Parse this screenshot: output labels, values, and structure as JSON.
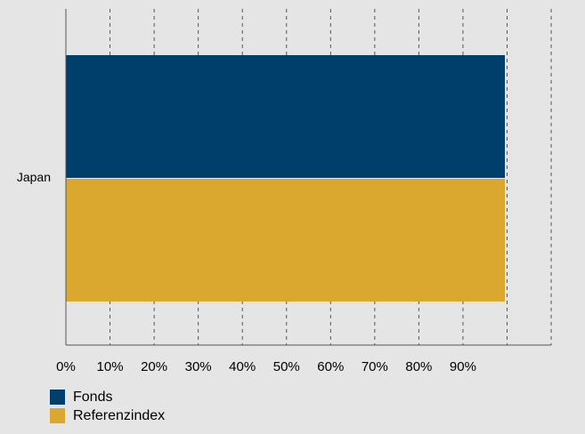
{
  "chart_data": {
    "type": "bar",
    "orientation": "horizontal",
    "categories": [
      "Japan"
    ],
    "series": [
      {
        "name": "Fonds",
        "values": [
          99.5
        ],
        "color": "#003f6b"
      },
      {
        "name": "Referenzindex",
        "values": [
          99.5
        ],
        "color": "#daa82f"
      }
    ],
    "xlim": [
      0,
      110
    ],
    "x_ticks": [
      0,
      10,
      20,
      30,
      40,
      50,
      60,
      70,
      80,
      90
    ],
    "x_tick_labels": [
      "0%",
      "10%",
      "20%",
      "30%",
      "40%",
      "50%",
      "60%",
      "70%",
      "80%",
      "90%"
    ],
    "grid": "vertical-dashed",
    "legend_position": "bottom-left",
    "title": "",
    "xlabel": "",
    "ylabel": ""
  },
  "background_color": "#e5e5e5"
}
